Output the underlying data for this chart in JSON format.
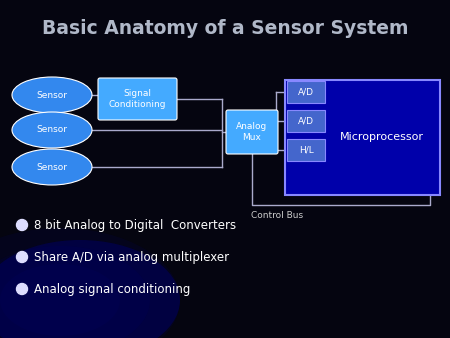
{
  "title": "Basic Anatomy of a Sensor System",
  "title_color": "#b0b8c8",
  "bg_color": "#050510",
  "sensor_color": "#3388ee",
  "sensor_text_color": "white",
  "signal_cond_label": "Signal\nConditioning",
  "signal_cond_color": "#44aaff",
  "analog_mux_label": "Analog\nMux",
  "analog_mux_color": "#44aaff",
  "micro_box_color": "#0000aa",
  "micro_box_edge": "#8888ff",
  "micro_label": "Microprocessor",
  "micro_text_color": "white",
  "ad_box_color": "#4466cc",
  "ad_labels": [
    "A/D",
    "A/D",
    "H/L"
  ],
  "control_bus_label": "Control Bus",
  "control_bus_color": "#cccccc",
  "bullet_color": "#ddddff",
  "bullet_items": [
    "8 bit Analog to Digital  Converters",
    "Share A/D via analog multiplexer",
    "Analog signal conditioning"
  ],
  "bullet_text_color": "white",
  "line_color": "#aaaacc",
  "text_color": "white"
}
